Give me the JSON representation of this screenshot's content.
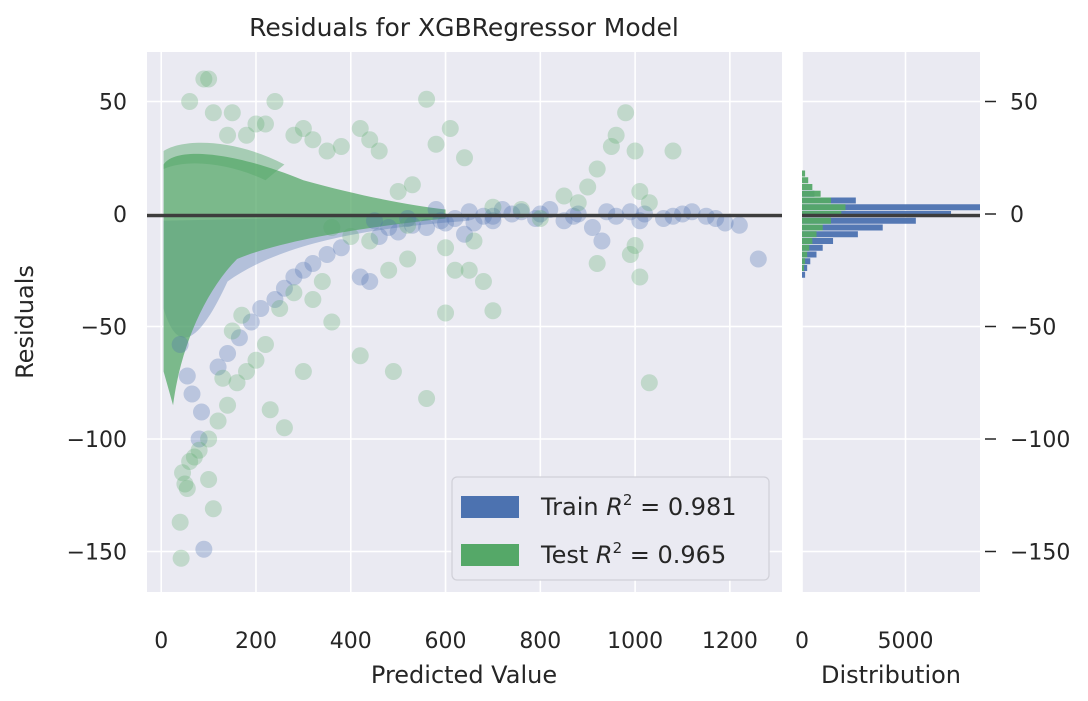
{
  "chart_data": [
    {
      "type": "scatter",
      "title": "Residuals for XGBRegressor Model",
      "xlabel": "Predicted Value",
      "ylabel": "Residuals",
      "xlim": [
        -30,
        1310
      ],
      "ylim": [
        -168,
        72
      ],
      "x_ticks": [
        "0",
        "200",
        "400",
        "600",
        "800",
        "1000",
        "1200"
      ],
      "x_tick_values": [
        0,
        200,
        400,
        600,
        800,
        1000,
        1200
      ],
      "y_ticks": [
        "50",
        "0",
        "−50",
        "−100",
        "−150"
      ],
      "y_tick_values": [
        50,
        0,
        -50,
        -100,
        -150
      ],
      "zero_line": 0,
      "grid": true,
      "legend_position": "lower-right",
      "legend": [
        {
          "series": "train",
          "label": "Train R² = 0.981",
          "label_prefix": "Train ",
          "r2": "0.981",
          "color": "#4c72b0"
        },
        {
          "series": "test",
          "label": "Test R² = 0.965",
          "label_prefix": "Test ",
          "r2": "0.965",
          "color": "#55a868"
        }
      ],
      "series": [
        {
          "id": "train",
          "color": "#4c72b0",
          "points": [
            [
              40,
              -58
            ],
            [
              55,
              -72
            ],
            [
              65,
              -80
            ],
            [
              85,
              -88
            ],
            [
              80,
              -100
            ],
            [
              90,
              -149
            ],
            [
              120,
              -68
            ],
            [
              140,
              -62
            ],
            [
              165,
              -55
            ],
            [
              190,
              -48
            ],
            [
              210,
              -42
            ],
            [
              240,
              -38
            ],
            [
              260,
              -33
            ],
            [
              280,
              -28
            ],
            [
              300,
              -25
            ],
            [
              320,
              -22
            ],
            [
              350,
              -18
            ],
            [
              380,
              -15
            ],
            [
              420,
              -28
            ],
            [
              440,
              -30
            ],
            [
              460,
              -10
            ],
            [
              480,
              -6
            ],
            [
              500,
              -8
            ],
            [
              530,
              -5
            ],
            [
              560,
              -6
            ],
            [
              590,
              -3
            ],
            [
              620,
              -2
            ],
            [
              640,
              -9
            ],
            [
              660,
              -4
            ],
            [
              700,
              -3
            ],
            [
              740,
              0
            ],
            [
              760,
              1
            ],
            [
              790,
              -2
            ],
            [
              820,
              2
            ],
            [
              850,
              -3
            ],
            [
              880,
              0
            ],
            [
              910,
              -6
            ],
            [
              930,
              -12
            ],
            [
              960,
              -1
            ],
            [
              990,
              1
            ],
            [
              1010,
              -3
            ],
            [
              1060,
              -2
            ],
            [
              1100,
              0
            ],
            [
              1150,
              -1
            ],
            [
              1190,
              -4
            ],
            [
              1220,
              -5
            ],
            [
              1260,
              -20
            ],
            [
              450,
              -3
            ],
            [
              520,
              -2
            ],
            [
              580,
              2
            ],
            [
              680,
              -1
            ],
            [
              720,
              2
            ],
            [
              800,
              0
            ],
            [
              870,
              -1
            ],
            [
              940,
              1
            ],
            [
              1020,
              0
            ],
            [
              1080,
              -1
            ],
            [
              1120,
              1
            ],
            [
              1170,
              -2
            ],
            [
              600,
              -4
            ],
            [
              650,
              1
            ],
            [
              700,
              -1
            ]
          ]
        },
        {
          "id": "test",
          "color": "#55a868",
          "points": [
            [
              90,
              60
            ],
            [
              100,
              60
            ],
            [
              60,
              50
            ],
            [
              110,
              45
            ],
            [
              140,
              35
            ],
            [
              150,
              45
            ],
            [
              180,
              35
            ],
            [
              200,
              40
            ],
            [
              220,
              40
            ],
            [
              240,
              50
            ],
            [
              280,
              35
            ],
            [
              300,
              38
            ],
            [
              320,
              33
            ],
            [
              350,
              28
            ],
            [
              380,
              30
            ],
            [
              420,
              38
            ],
            [
              440,
              33
            ],
            [
              460,
              28
            ],
            [
              500,
              10
            ],
            [
              530,
              13
            ],
            [
              560,
              51
            ],
            [
              580,
              31
            ],
            [
              610,
              38
            ],
            [
              640,
              25
            ],
            [
              960,
              35
            ],
            [
              980,
              45
            ],
            [
              1000,
              28
            ],
            [
              1080,
              28
            ],
            [
              920,
              20
            ],
            [
              900,
              12
            ],
            [
              950,
              30
            ],
            [
              1010,
              10
            ],
            [
              1030,
              5
            ],
            [
              850,
              8
            ],
            [
              880,
              5
            ],
            [
              700,
              3
            ],
            [
              760,
              2
            ],
            [
              800,
              -2
            ],
            [
              620,
              -25
            ],
            [
              650,
              -25
            ],
            [
              600,
              -44
            ],
            [
              700,
              -43
            ],
            [
              920,
              -22
            ],
            [
              990,
              -18
            ],
            [
              1010,
              -28
            ],
            [
              1030,
              -75
            ],
            [
              1000,
              -14
            ],
            [
              560,
              -82
            ],
            [
              490,
              -70
            ],
            [
              420,
              -63
            ],
            [
              360,
              -48
            ],
            [
              320,
              -38
            ],
            [
              280,
              -35
            ],
            [
              250,
              -42
            ],
            [
              220,
              -58
            ],
            [
              200,
              -65
            ],
            [
              180,
              -70
            ],
            [
              160,
              -75
            ],
            [
              140,
              -85
            ],
            [
              120,
              -92
            ],
            [
              100,
              -100
            ],
            [
              80,
              -105
            ],
            [
              60,
              -110
            ],
            [
              45,
              -115
            ],
            [
              50,
              -120
            ],
            [
              55,
              -122
            ],
            [
              70,
              -108
            ],
            [
              40,
              -137
            ],
            [
              42,
              -153
            ],
            [
              110,
              -131
            ],
            [
              100,
              -118
            ],
            [
              230,
              -87
            ],
            [
              260,
              -95
            ],
            [
              130,
              -73
            ],
            [
              150,
              -52
            ],
            [
              170,
              -45
            ],
            [
              300,
              -70
            ],
            [
              340,
              -30
            ],
            [
              480,
              -25
            ],
            [
              520,
              -20
            ],
            [
              680,
              -30
            ],
            [
              520,
              -5
            ],
            [
              440,
              -12
            ],
            [
              400,
              -10
            ],
            [
              360,
              -6
            ],
            [
              600,
              -15
            ],
            [
              660,
              -12
            ]
          ]
        }
      ]
    },
    {
      "type": "bar",
      "orientation": "horizontal",
      "xlabel": "Distribution",
      "xlim": [
        0,
        8600
      ],
      "x_ticks": [
        "0",
        "5000"
      ],
      "x_tick_values": [
        0,
        5000
      ],
      "bin_width": 3.2,
      "series": [
        {
          "id": "train",
          "color": "#4c72b0",
          "bins": [
            {
              "center": 9,
              "count": 600
            },
            {
              "center": 6,
              "count": 2600
            },
            {
              "center": 3,
              "count": 8600
            },
            {
              "center": 0,
              "count": 7200
            },
            {
              "center": -3,
              "count": 5500
            },
            {
              "center": -6,
              "count": 3900
            },
            {
              "center": -9,
              "count": 2700
            },
            {
              "center": -12,
              "count": 1500
            },
            {
              "center": -15,
              "count": 1000
            },
            {
              "center": -18,
              "count": 700
            },
            {
              "center": -21,
              "count": 400
            },
            {
              "center": -24,
              "count": 250
            },
            {
              "center": -27,
              "count": 150
            }
          ]
        },
        {
          "id": "test",
          "color": "#55a868",
          "bins": [
            {
              "center": 18,
              "count": 150
            },
            {
              "center": 15,
              "count": 300
            },
            {
              "center": 12,
              "count": 500
            },
            {
              "center": 9,
              "count": 900
            },
            {
              "center": 6,
              "count": 1400
            },
            {
              "center": 3,
              "count": 2100
            },
            {
              "center": 0,
              "count": 1900
            },
            {
              "center": -3,
              "count": 1400
            },
            {
              "center": -6,
              "count": 1000
            },
            {
              "center": -9,
              "count": 700
            },
            {
              "center": -12,
              "count": 500
            },
            {
              "center": -15,
              "count": 350
            },
            {
              "center": -18,
              "count": 250
            },
            {
              "center": -21,
              "count": 150
            },
            {
              "center": -24,
              "count": 100
            }
          ]
        }
      ]
    }
  ],
  "right_axis": {
    "ticks": [
      "50",
      "0",
      "−50",
      "−100",
      "−150"
    ],
    "tick_values": [
      50,
      0,
      -50,
      -100,
      -150
    ]
  }
}
